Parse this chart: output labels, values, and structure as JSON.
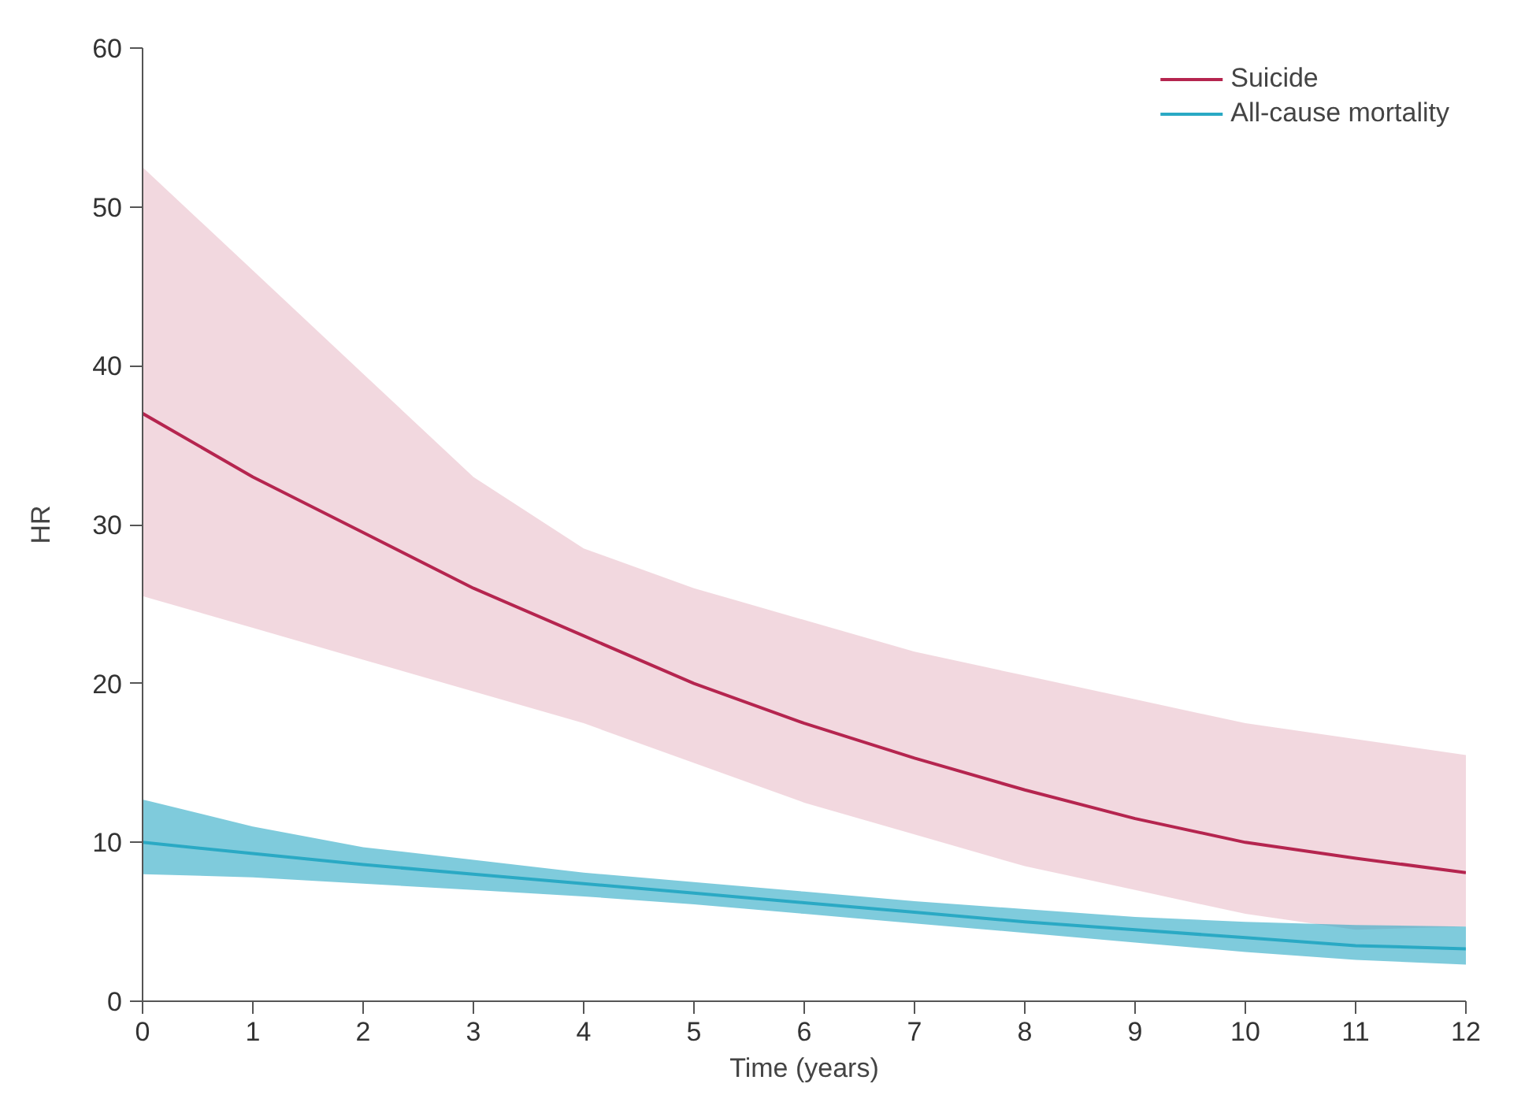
{
  "chart_data": {
    "type": "line",
    "xlabel": "Time (years)",
    "ylabel": "HR",
    "x": [
      0,
      1,
      2,
      3,
      4,
      5,
      6,
      7,
      8,
      9,
      10,
      11,
      12
    ],
    "xlim": [
      0,
      12
    ],
    "xticks": [
      0,
      1,
      2,
      3,
      4,
      5,
      6,
      7,
      8,
      9,
      10,
      11,
      12
    ],
    "ylim": [
      0,
      60
    ],
    "yticks": [
      0,
      10,
      20,
      30,
      40,
      50,
      60
    ],
    "grid": false,
    "legend": "top right",
    "line_style": "solid",
    "series": [
      {
        "name": "Suicide",
        "color": "#b5254f",
        "values": [
          37,
          33,
          29.5,
          26,
          23,
          20,
          17.5,
          15.3,
          13.3,
          11.5,
          10,
          9,
          8.1
        ],
        "upper": [
          52.5,
          46,
          39.5,
          33,
          28.5,
          26,
          24,
          22,
          20.5,
          19,
          17.5,
          16.5,
          15.5
        ],
        "lower": [
          25.5,
          23.5,
          21.5,
          19.5,
          17.5,
          15,
          12.5,
          10.5,
          8.5,
          7,
          5.5,
          4.5,
          4.7
        ]
      },
      {
        "name": "All-cause mortality",
        "color": "#2aa9c4",
        "values": [
          10,
          9.3,
          8.6,
          8,
          7.4,
          6.8,
          6.2,
          5.6,
          5,
          4.5,
          4,
          3.5,
          3.3
        ],
        "upper": [
          12.7,
          11,
          9.7,
          8.9,
          8.1,
          7.5,
          6.9,
          6.3,
          5.8,
          5.3,
          5,
          4.8,
          4.7
        ],
        "lower": [
          8,
          7.8,
          7.4,
          7,
          6.6,
          6.1,
          5.5,
          4.9,
          4.3,
          3.7,
          3.1,
          2.6,
          2.3
        ]
      }
    ]
  }
}
